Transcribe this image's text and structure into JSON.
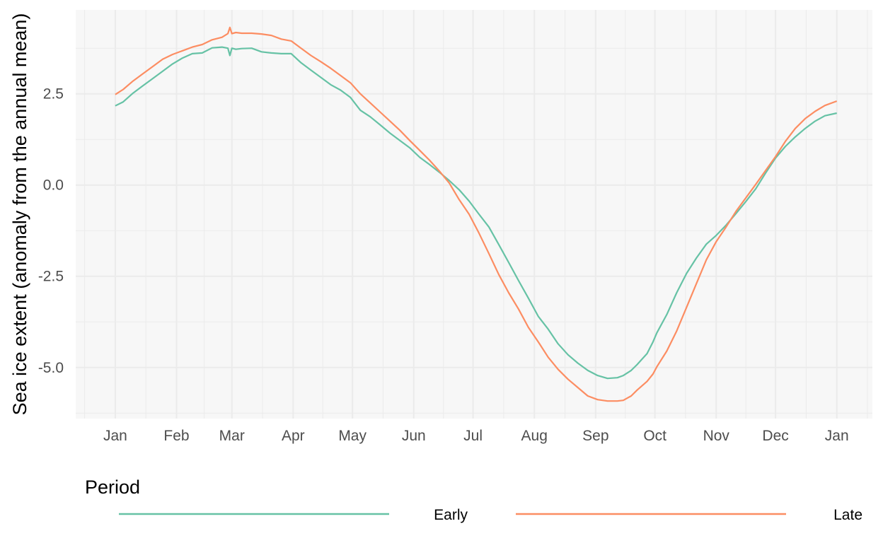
{
  "chart_data": {
    "type": "line",
    "title": "",
    "xlabel": "",
    "ylabel": "Sea ice extent (anomaly from the annual mean)",
    "x_unit": "day of year",
    "xlim": [
      -19,
      384
    ],
    "ylim": [
      -6.4,
      4.8
    ],
    "grid": true,
    "y_ticks": [
      2.5,
      0.0,
      -2.5,
      -5.0
    ],
    "y_tick_labels": [
      "2.5",
      "0.0",
      "-2.5",
      "-5.0"
    ],
    "x_ticks": [
      1,
      32,
      60,
      91,
      121,
      152,
      182,
      213,
      244,
      274,
      305,
      335,
      366
    ],
    "x_tick_labels": [
      "Jan",
      "Feb",
      "Mar",
      "Apr",
      "May",
      "Jun",
      "Jul",
      "Aug",
      "Sep",
      "Oct",
      "Nov",
      "Dec",
      "Jan"
    ],
    "legend": {
      "title": "Period",
      "position": "bottom"
    },
    "series": [
      {
        "name": "Early",
        "color": "#66c2a5",
        "x": [
          1,
          5,
          10,
          15,
          20,
          25,
          30,
          35,
          40,
          45,
          50,
          55,
          58,
          59,
          60,
          62,
          65,
          70,
          75,
          80,
          85,
          90,
          95,
          100,
          105,
          110,
          115,
          120,
          125,
          130,
          135,
          140,
          145,
          150,
          155,
          160,
          165,
          170,
          175,
          180,
          185,
          190,
          195,
          200,
          205,
          210,
          215,
          220,
          225,
          230,
          235,
          240,
          245,
          250,
          255,
          258,
          262,
          265,
          270,
          273,
          275,
          280,
          285,
          290,
          295,
          300,
          305,
          310,
          315,
          320,
          325,
          330,
          335,
          340,
          345,
          350,
          355,
          360,
          366
        ],
        "values": [
          2.17,
          2.28,
          2.52,
          2.72,
          2.92,
          3.12,
          3.32,
          3.48,
          3.6,
          3.62,
          3.76,
          3.78,
          3.75,
          3.55,
          3.75,
          3.72,
          3.74,
          3.75,
          3.65,
          3.62,
          3.6,
          3.6,
          3.35,
          3.15,
          2.95,
          2.75,
          2.6,
          2.4,
          2.05,
          1.87,
          1.65,
          1.42,
          1.22,
          1.02,
          0.76,
          0.56,
          0.35,
          0.12,
          -0.13,
          -0.44,
          -0.8,
          -1.15,
          -1.63,
          -2.12,
          -2.62,
          -3.1,
          -3.6,
          -3.95,
          -4.35,
          -4.65,
          -4.88,
          -5.08,
          -5.22,
          -5.3,
          -5.28,
          -5.22,
          -5.08,
          -4.92,
          -4.62,
          -4.3,
          -4.05,
          -3.55,
          -2.95,
          -2.42,
          -2.0,
          -1.62,
          -1.38,
          -1.1,
          -0.78,
          -0.45,
          -0.1,
          0.33,
          0.74,
          1.06,
          1.32,
          1.55,
          1.75,
          1.9,
          1.97
        ]
      },
      {
        "name": "Late",
        "color": "#fc8d62",
        "x": [
          1,
          5,
          10,
          15,
          20,
          25,
          30,
          35,
          40,
          45,
          50,
          55,
          58,
          59,
          60,
          62,
          65,
          70,
          75,
          80,
          85,
          90,
          95,
          100,
          105,
          110,
          115,
          120,
          125,
          130,
          135,
          140,
          145,
          150,
          155,
          160,
          165,
          170,
          175,
          180,
          185,
          190,
          195,
          200,
          205,
          210,
          215,
          220,
          225,
          230,
          235,
          240,
          245,
          250,
          255,
          258,
          262,
          265,
          270,
          273,
          275,
          280,
          285,
          290,
          295,
          300,
          305,
          310,
          315,
          320,
          325,
          330,
          335,
          340,
          345,
          350,
          355,
          360,
          366
        ],
        "values": [
          2.48,
          2.62,
          2.85,
          3.05,
          3.25,
          3.45,
          3.58,
          3.68,
          3.78,
          3.85,
          3.98,
          4.05,
          4.15,
          4.32,
          4.15,
          4.18,
          4.16,
          4.16,
          4.14,
          4.1,
          4.0,
          3.95,
          3.75,
          3.55,
          3.38,
          3.2,
          3.0,
          2.8,
          2.5,
          2.25,
          2.0,
          1.75,
          1.5,
          1.22,
          0.95,
          0.68,
          0.38,
          0.05,
          -0.4,
          -0.8,
          -1.32,
          -1.88,
          -2.45,
          -2.95,
          -3.4,
          -3.9,
          -4.3,
          -4.72,
          -5.05,
          -5.32,
          -5.55,
          -5.78,
          -5.88,
          -5.92,
          -5.92,
          -5.9,
          -5.78,
          -5.62,
          -5.38,
          -5.18,
          -4.98,
          -4.55,
          -4.0,
          -3.35,
          -2.7,
          -2.05,
          -1.55,
          -1.15,
          -0.72,
          -0.35,
          0.02,
          0.4,
          0.78,
          1.2,
          1.55,
          1.82,
          2.02,
          2.18,
          2.3
        ]
      }
    ]
  }
}
